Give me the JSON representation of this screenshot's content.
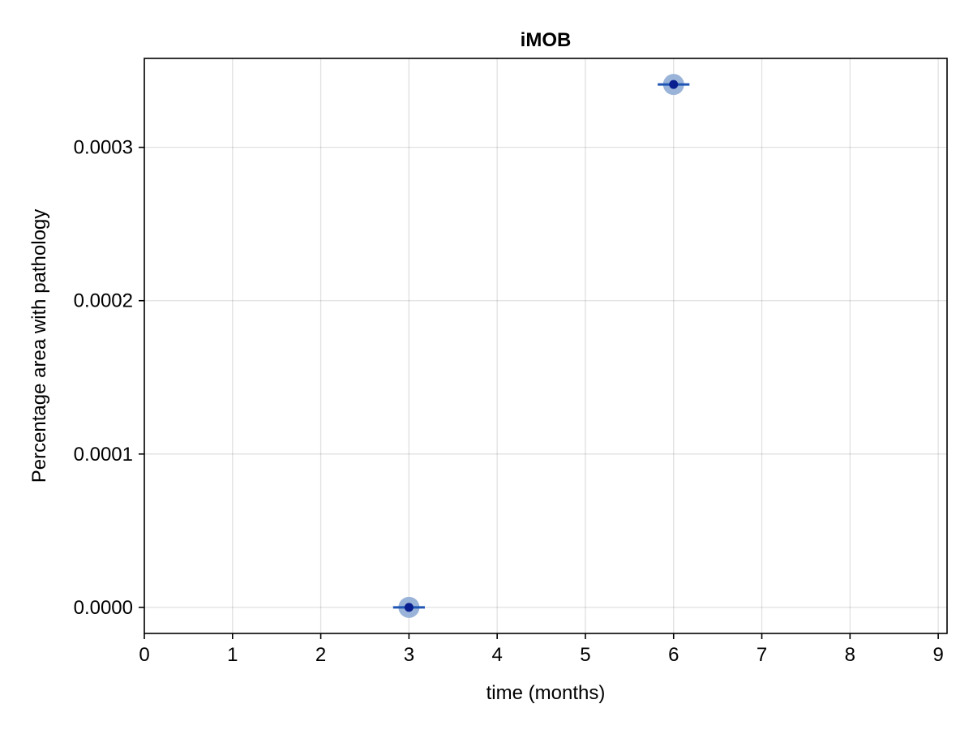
{
  "chart_data": {
    "type": "scatter",
    "title": "iMOB",
    "xlabel": "time (months)",
    "ylabel": "Percentage area with pathology",
    "xlim": [
      0,
      9.1
    ],
    "ylim": [
      -1.7e-05,
      0.000358
    ],
    "xticks": [
      0,
      1,
      2,
      3,
      4,
      5,
      6,
      7,
      8,
      9
    ],
    "xtick_labels": [
      "0",
      "1",
      "2",
      "3",
      "4",
      "5",
      "6",
      "7",
      "8",
      "9"
    ],
    "yticks": [
      0,
      0.0001,
      0.0002,
      0.0003
    ],
    "ytick_labels": [
      "0.0000",
      "0.0001",
      "0.0002",
      "0.0003"
    ],
    "grid": true,
    "series": [
      {
        "x": [
          3,
          6
        ],
        "y": [
          0,
          0.000341
        ],
        "xerr": [
          0.18,
          0.18
        ],
        "colors": {
          "halo": "#9ab3d8",
          "errorbar": "#1f56b4",
          "point": "#0a1f8f"
        }
      }
    ]
  }
}
